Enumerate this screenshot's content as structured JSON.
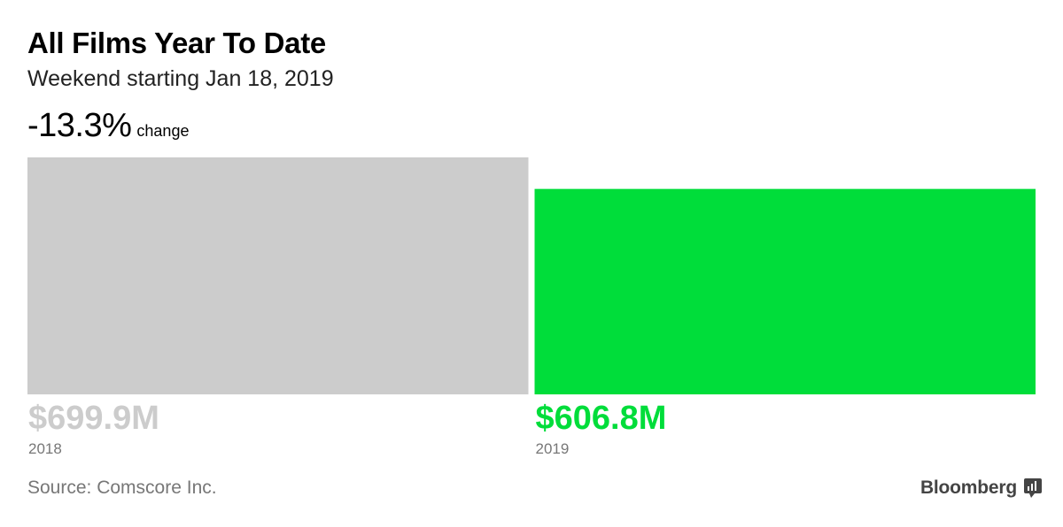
{
  "header": {
    "title": "All Films Year To Date",
    "subtitle": "Weekend starting Jan 18, 2019",
    "change_value": "-13.3%",
    "change_label": "change"
  },
  "chart_data": {
    "type": "bar",
    "title": "All Films Year To Date",
    "subtitle": "Weekend starting Jan 18, 2019",
    "categories": [
      "2018",
      "2019"
    ],
    "values": [
      699.9,
      606.8
    ],
    "value_labels": [
      "$699.9M",
      "$606.8M"
    ],
    "colors": [
      "#cccccc",
      "#00dd3a"
    ],
    "ylim": [
      0,
      699.9
    ],
    "grid": false
  },
  "footer": {
    "source": "Source: Comscore Inc.",
    "brand": "Bloomberg",
    "brand_icon": "bloomberg-chart-icon"
  }
}
